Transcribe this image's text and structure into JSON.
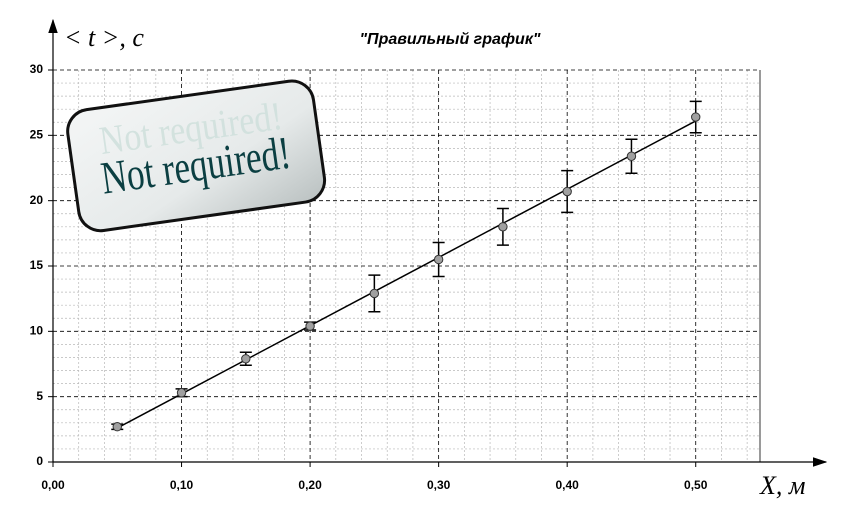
{
  "chart_data": {
    "type": "scatter",
    "title": "\"Правильный график\"",
    "y_label": "< t >, c",
    "x_label": "X, м",
    "stamp": "Not required!",
    "x": [
      0.05,
      0.1,
      0.15,
      0.2,
      0.25,
      0.3,
      0.35,
      0.4,
      0.45,
      0.5
    ],
    "series": [
      {
        "color": "#a0a0a0",
        "values": [
          2.7,
          5.3,
          7.9,
          10.4,
          12.9,
          15.5,
          18.0,
          20.7,
          23.4,
          26.4
        ],
        "errors": [
          0.2,
          0.3,
          0.5,
          0.3,
          1.4,
          1.3,
          1.4,
          1.6,
          1.3,
          1.2
        ]
      }
    ],
    "trendline": {
      "x": [
        0.05,
        0.5
      ],
      "values": [
        2.6,
        26.1
      ],
      "color": "#000000"
    },
    "xlim": [
      0,
      0.55
    ],
    "ylim": [
      0,
      30
    ],
    "xticks": [
      {
        "value": 0,
        "label": "0,00"
      },
      {
        "value": 0.1,
        "label": "0,10"
      },
      {
        "value": 0.2,
        "label": "0,20"
      },
      {
        "value": 0.3,
        "label": "0,30"
      },
      {
        "value": 0.4,
        "label": "0,40"
      },
      {
        "value": 0.5,
        "label": "0,50"
      }
    ],
    "yticks": [
      0,
      5,
      10,
      15,
      20,
      25,
      30
    ],
    "grid": true
  }
}
